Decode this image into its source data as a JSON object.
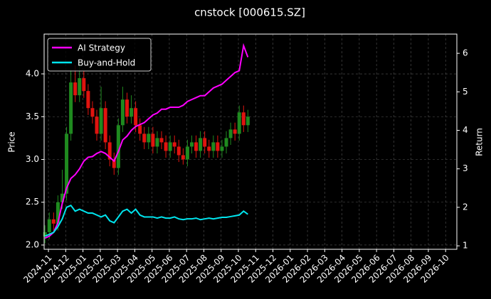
{
  "chart_data": {
    "type": "candlestick",
    "title": "cnstock [000615.SZ]",
    "ylabel": "Price",
    "y2label": "Return",
    "x": [
      -0.2,
      0.05,
      0.3,
      0.55,
      0.8,
      1.05,
      1.3,
      1.55,
      1.8,
      2.05,
      2.3,
      2.55,
      2.8,
      3.05,
      3.3,
      3.55,
      3.8,
      4.05,
      4.3,
      4.55,
      4.8,
      5.05,
      5.3,
      5.55,
      5.8,
      6.05,
      6.3,
      6.55,
      6.8,
      7.05,
      7.3,
      7.55,
      7.8,
      8.05,
      8.3,
      8.55,
      8.8,
      9.05,
      9.3,
      9.55,
      9.8,
      10.05,
      10.3,
      10.55,
      10.8,
      11.05,
      11.3,
      11.55
    ],
    "open": [
      2.1,
      2.15,
      2.3,
      2.25,
      2.5,
      2.6,
      3.3,
      3.9,
      3.75,
      3.95,
      3.8,
      3.6,
      3.5,
      3.3,
      3.6,
      3.2,
      3.0,
      2.9,
      3.4,
      3.7,
      3.5,
      3.6,
      3.4,
      3.3,
      3.2,
      3.3,
      3.15,
      3.25,
      3.2,
      3.1,
      3.2,
      3.15,
      3.05,
      3.0,
      3.15,
      3.2,
      3.1,
      3.25,
      3.15,
      3.1,
      3.2,
      3.1,
      3.15,
      3.25,
      3.35,
      3.3,
      3.55,
      3.4
    ],
    "high": [
      2.23,
      2.38,
      2.38,
      2.58,
      2.88,
      3.38,
      4.05,
      4.1,
      4.15,
      4.03,
      3.88,
      3.68,
      3.58,
      3.85,
      3.68,
      3.28,
      3.08,
      3.48,
      3.85,
      3.78,
      3.75,
      3.68,
      3.48,
      3.38,
      3.38,
      3.38,
      3.33,
      3.33,
      3.28,
      3.28,
      3.28,
      3.23,
      3.13,
      3.23,
      3.28,
      3.28,
      3.33,
      3.33,
      3.23,
      3.28,
      3.28,
      3.23,
      3.33,
      3.43,
      3.43,
      3.63,
      3.63,
      3.58
    ],
    "low": [
      2.02,
      2.07,
      2.17,
      2.17,
      2.42,
      2.52,
      3.22,
      3.67,
      3.67,
      3.72,
      3.52,
      3.42,
      3.22,
      3.22,
      3.12,
      2.92,
      2.82,
      2.82,
      3.32,
      3.42,
      3.42,
      3.32,
      3.22,
      3.12,
      3.12,
      3.07,
      3.07,
      3.12,
      3.02,
      3.02,
      3.07,
      2.97,
      2.94,
      2.92,
      3.07,
      3.02,
      3.02,
      3.07,
      3.02,
      3.02,
      3.02,
      3.02,
      3.07,
      3.17,
      3.22,
      3.22,
      3.32,
      3.32
    ],
    "close": [
      2.15,
      2.3,
      2.25,
      2.5,
      2.6,
      3.3,
      3.9,
      3.75,
      3.95,
      3.8,
      3.6,
      3.5,
      3.3,
      3.6,
      3.2,
      3.0,
      2.9,
      3.4,
      3.7,
      3.5,
      3.6,
      3.4,
      3.3,
      3.2,
      3.3,
      3.15,
      3.25,
      3.2,
      3.1,
      3.2,
      3.15,
      3.05,
      3.0,
      3.15,
      3.2,
      3.1,
      3.25,
      3.15,
      3.1,
      3.2,
      3.1,
      3.15,
      3.25,
      3.35,
      3.3,
      3.55,
      3.4,
      3.5
    ],
    "up_color": "#1f8a1f",
    "down_color": "#e0140f",
    "series": [
      {
        "name": "AI Strategy",
        "color": "#ff00ff",
        "axis": "y2",
        "values": [
          1.2,
          1.25,
          1.35,
          1.6,
          2.1,
          2.5,
          2.75,
          2.85,
          3.0,
          3.2,
          3.3,
          3.32,
          3.4,
          3.45,
          3.4,
          3.3,
          3.2,
          3.45,
          3.75,
          3.85,
          4.0,
          4.1,
          4.15,
          4.2,
          4.3,
          4.4,
          4.45,
          4.55,
          4.55,
          4.6,
          4.6,
          4.6,
          4.65,
          4.75,
          4.8,
          4.85,
          4.9,
          4.9,
          5.0,
          5.1,
          5.15,
          5.2,
          5.3,
          5.4,
          5.5,
          5.55,
          6.2,
          5.9
        ]
      },
      {
        "name": "Buy-and-Hold",
        "color": "#00e5ee",
        "axis": "y2",
        "values": [
          1.25,
          1.3,
          1.35,
          1.5,
          1.7,
          2.0,
          2.05,
          1.9,
          1.95,
          1.9,
          1.85,
          1.85,
          1.8,
          1.75,
          1.8,
          1.65,
          1.6,
          1.75,
          1.9,
          1.95,
          1.85,
          1.95,
          1.8,
          1.75,
          1.75,
          1.75,
          1.72,
          1.75,
          1.72,
          1.72,
          1.75,
          1.7,
          1.68,
          1.7,
          1.7,
          1.72,
          1.68,
          1.7,
          1.72,
          1.7,
          1.72,
          1.74,
          1.74,
          1.76,
          1.78,
          1.8,
          1.9,
          1.82
        ]
      }
    ],
    "xlim": [
      -0.25,
      23.65
    ],
    "xticks": [
      {
        "value": 0,
        "label": "2024-11"
      },
      {
        "value": 1,
        "label": "2024-12"
      },
      {
        "value": 2,
        "label": "2025-01"
      },
      {
        "value": 3,
        "label": "2025-02"
      },
      {
        "value": 4,
        "label": "2025-03"
      },
      {
        "value": 5,
        "label": "2025-04"
      },
      {
        "value": 6,
        "label": "2025-05"
      },
      {
        "value": 7,
        "label": "2025-06"
      },
      {
        "value": 8,
        "label": "2025-07"
      },
      {
        "value": 9,
        "label": "2025-08"
      },
      {
        "value": 10,
        "label": "2025-09"
      },
      {
        "value": 11,
        "label": "2025-10"
      },
      {
        "value": 12,
        "label": "2025-11"
      },
      {
        "value": 13,
        "label": "2025-12"
      },
      {
        "value": 14,
        "label": "2026-01"
      },
      {
        "value": 15,
        "label": "2026-02"
      },
      {
        "value": 16,
        "label": "2026-03"
      },
      {
        "value": 17,
        "label": "2026-04"
      },
      {
        "value": 18,
        "label": "2026-05"
      },
      {
        "value": 19,
        "label": "2026-06"
      },
      {
        "value": 20,
        "label": "2026-07"
      },
      {
        "value": 21,
        "label": "2026-08"
      },
      {
        "value": 22,
        "label": "2026-09"
      },
      {
        "value": 23,
        "label": "2026-10"
      }
    ],
    "ylim": [
      1.95,
      4.465
    ],
    "yticks": [
      {
        "value": 2,
        "label": "2.0"
      },
      {
        "value": 2.5,
        "label": "2.5"
      },
      {
        "value": 3,
        "label": "3.0"
      },
      {
        "value": 3.5,
        "label": "3.5"
      },
      {
        "value": 4,
        "label": "4.0"
      }
    ],
    "y2lim": [
      0.91,
      6.5
    ],
    "y2ticks": [
      1,
      2,
      3,
      4,
      5,
      6
    ],
    "grid": true,
    "legend": "upper left"
  }
}
